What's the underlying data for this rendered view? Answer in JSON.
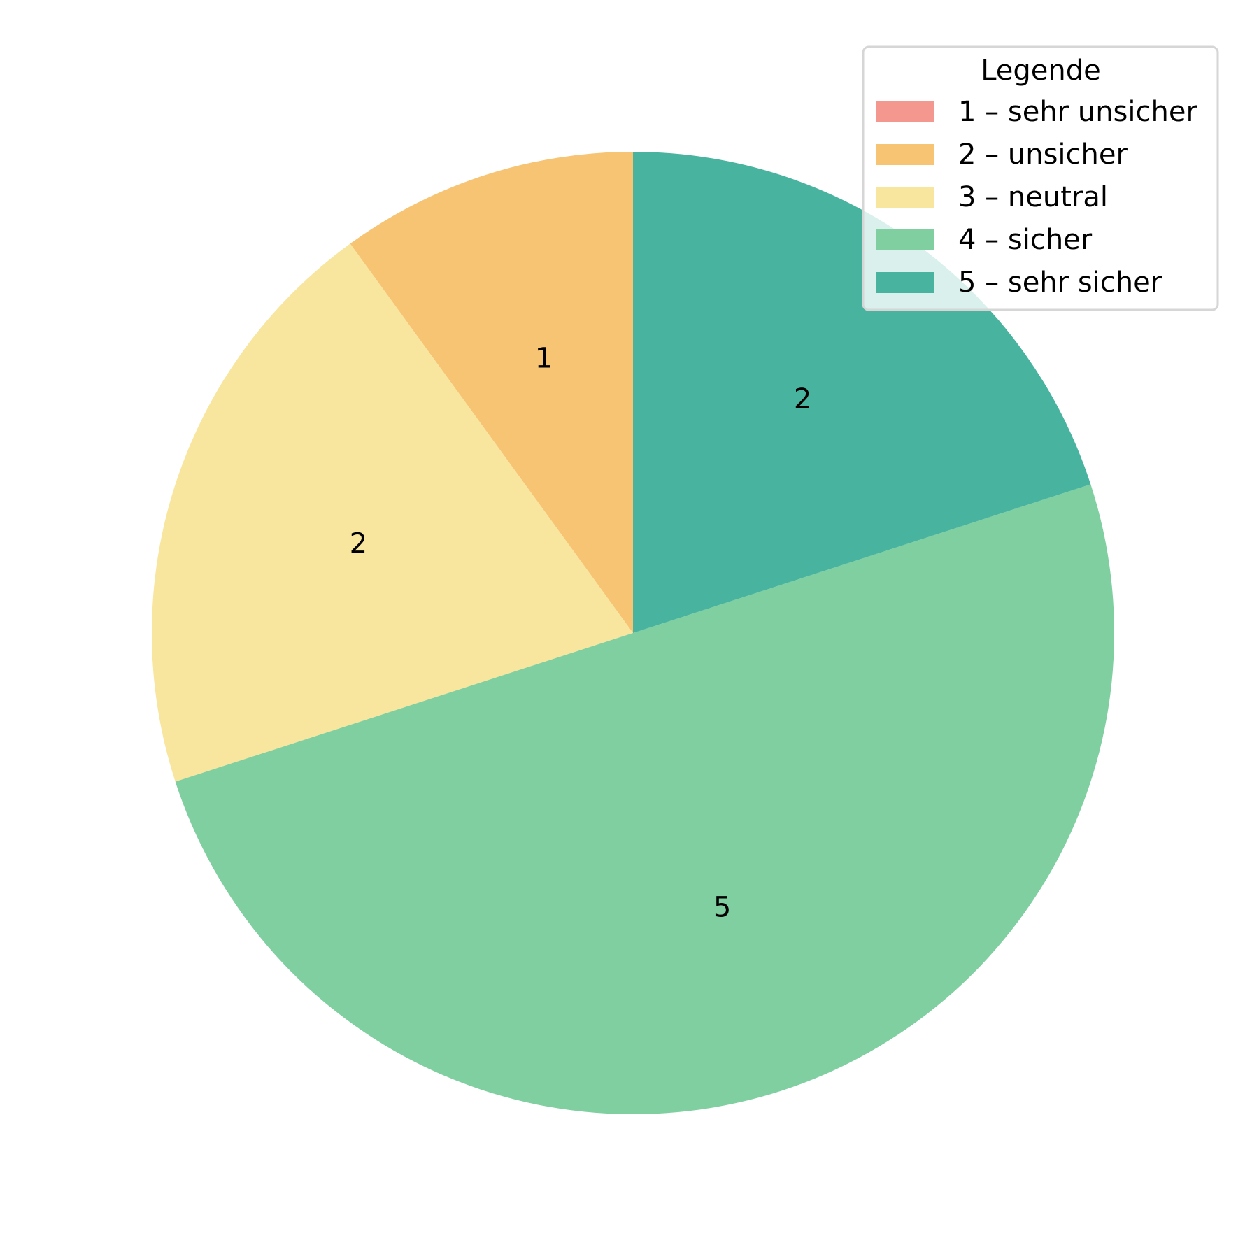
{
  "chart_data": {
    "type": "pie",
    "title": "",
    "legend_title": "Legende",
    "legend_position": "top-right",
    "categories": [
      "1 – sehr unsicher",
      "2 – unsicher",
      "3 – neutral",
      "4 – sicher",
      "5 – sehr sicher"
    ],
    "values": [
      0,
      1,
      2,
      5,
      2
    ],
    "slice_labels": [
      "",
      "1",
      "2",
      "5",
      "2"
    ],
    "colors": [
      "#F4978E",
      "#F7C474",
      "#F8E59E",
      "#7FCFA0",
      "#48B39E"
    ],
    "start_angle_deg": 90,
    "direction": "counterclockwise"
  }
}
